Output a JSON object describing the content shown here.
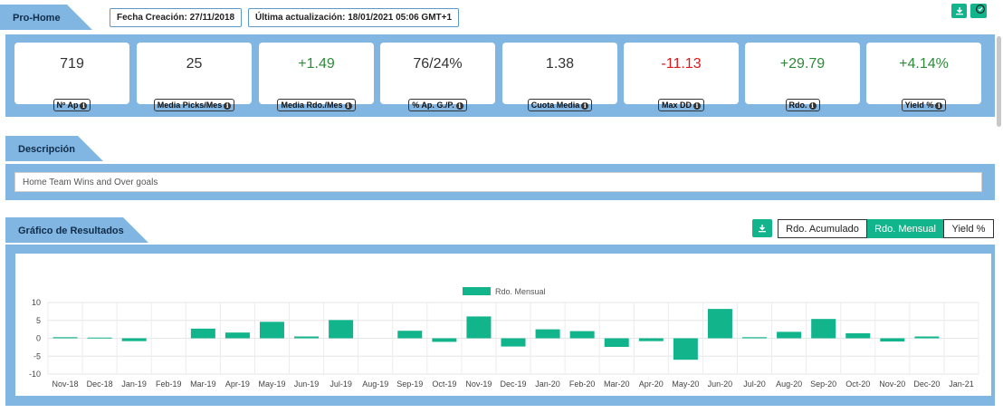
{
  "header": {
    "title": "Pro-Home",
    "created": "Fecha Creación: 27/11/2018",
    "updated": "Última actualización: 18/01/2021 05:06 GMT+1",
    "download_icon": "download-icon",
    "check_icon": "check-icon"
  },
  "stats": [
    {
      "value": "719",
      "label": "Nº Ap",
      "tone": "neutral"
    },
    {
      "value": "25",
      "label": "Media Picks/Mes",
      "tone": "neutral"
    },
    {
      "value": "+1.49",
      "label": "Media Rdo./Mes",
      "tone": "pos"
    },
    {
      "value": "76/24%",
      "label": "% Ap. G./P.",
      "tone": "neutral"
    },
    {
      "value": "1.38",
      "label": "Cuota Media",
      "tone": "neutral"
    },
    {
      "value": "-11.13",
      "label": "Max DD",
      "tone": "neg"
    },
    {
      "value": "+29.79",
      "label": "Rdo.",
      "tone": "pos"
    },
    {
      "value": "+4.14%",
      "label": "Yield %",
      "tone": "pos"
    }
  ],
  "description": {
    "title": "Descripción",
    "text": "Home Team Wins and Over goals"
  },
  "results": {
    "title": "Gráfico de Resultados",
    "toggles": [
      "Rdo. Acumulado",
      "Rdo. Mensual",
      "Yield %"
    ],
    "active_toggle": "Rdo. Mensual"
  },
  "colors": {
    "accent": "#12b48c",
    "panel": "#82b6e2",
    "positive": "#2e8b3a",
    "negative": "#e01818"
  },
  "chart_data": {
    "type": "bar",
    "categories": [
      "Nov-18",
      "Dec-18",
      "Jan-19",
      "Feb-19",
      "Mar-19",
      "Apr-19",
      "May-19",
      "Jun-19",
      "Jul-19",
      "Aug-19",
      "Sep-19",
      "Oct-19",
      "Nov-19",
      "Dec-19",
      "Jan-20",
      "Feb-20",
      "Mar-20",
      "Apr-20",
      "May-20",
      "Jun-20",
      "Jul-20",
      "Aug-20",
      "Sep-20",
      "Oct-20",
      "Nov-20",
      "Dec-20",
      "Jan-21"
    ],
    "series": [
      {
        "name": "Rdo. Mensual",
        "values": [
          0.3,
          0.2,
          -0.8,
          0,
          2.7,
          1.6,
          4.6,
          0.5,
          5.1,
          0,
          2.1,
          -1.0,
          6.1,
          -2.3,
          2.5,
          2.0,
          -2.4,
          -0.8,
          -6.0,
          8.2,
          0.3,
          1.8,
          5.4,
          1.4,
          -0.9,
          0.5,
          null
        ]
      }
    ],
    "yticks": [
      10,
      5,
      0,
      -5,
      -10
    ],
    "ylim": [
      -10,
      10
    ],
    "legend": "top-center",
    "grid": true
  }
}
